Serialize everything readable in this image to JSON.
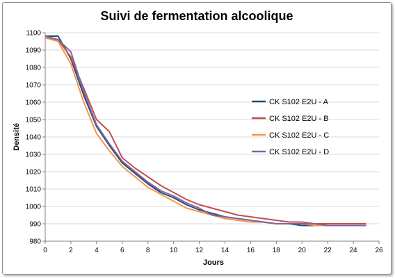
{
  "chart_data": {
    "type": "line",
    "title": "Suivi de fermentation alcoolique",
    "xlabel": "Jours",
    "ylabel": "Densité",
    "xlim": [
      0,
      26
    ],
    "ylim": [
      980,
      1100
    ],
    "xticks": [
      "0",
      "2",
      "4",
      "6",
      "8",
      "10",
      "12",
      "14",
      "16",
      "18",
      "20",
      "22",
      "24",
      "26"
    ],
    "yticks": [
      "980",
      "990",
      "1000",
      "1010",
      "1020",
      "1030",
      "1040",
      "1050",
      "1060",
      "1070",
      "1080",
      "1090",
      "1100"
    ],
    "grid": "horizontal",
    "legend_position": "right",
    "x": [
      0,
      1,
      2,
      3,
      4,
      5,
      6,
      7,
      8,
      9,
      10,
      11,
      12,
      13,
      14,
      15,
      16,
      17,
      18,
      19,
      20,
      21,
      22,
      23,
      24,
      25
    ],
    "series": [
      {
        "name": "CK S102 E2U - A",
        "color": "#1f4e79",
        "values": [
          1098,
          1098,
          1085,
          1064,
          1046,
          1035,
          1025,
          1019,
          1013,
          1008,
          1005,
          1001,
          998,
          996,
          994,
          993,
          992,
          991,
          990,
          990,
          989,
          989,
          989,
          989,
          989,
          989
        ]
      },
      {
        "name": "CK S102 E2U - B",
        "color": "#c0504d",
        "values": [
          1097,
          1096,
          1086,
          1068,
          1050,
          1043,
          1028,
          1022,
          1017,
          1012,
          1008,
          1004,
          1001,
          999,
          997,
          995,
          994,
          993,
          992,
          991,
          991,
          990,
          990,
          990,
          990,
          990
        ]
      },
      {
        "name": "CK S102 E2U - C",
        "color": "#f79646",
        "values": [
          1097,
          1095,
          1082,
          1060,
          1042,
          1032,
          1023,
          1017,
          1011,
          1007,
          1003,
          999,
          997,
          995,
          993,
          992,
          991,
          991,
          990,
          990,
          990,
          989,
          989,
          989,
          989,
          989
        ]
      },
      {
        "name": "CK S102 E2U - D",
        "color": "#8064a2",
        "values": [
          1098,
          1096,
          1089,
          1066,
          1047,
          1036,
          1026,
          1020,
          1014,
          1009,
          1006,
          1002,
          999,
          995,
          994,
          993,
          992,
          991,
          990,
          990,
          990,
          990,
          989,
          989,
          989,
          989
        ]
      }
    ]
  }
}
